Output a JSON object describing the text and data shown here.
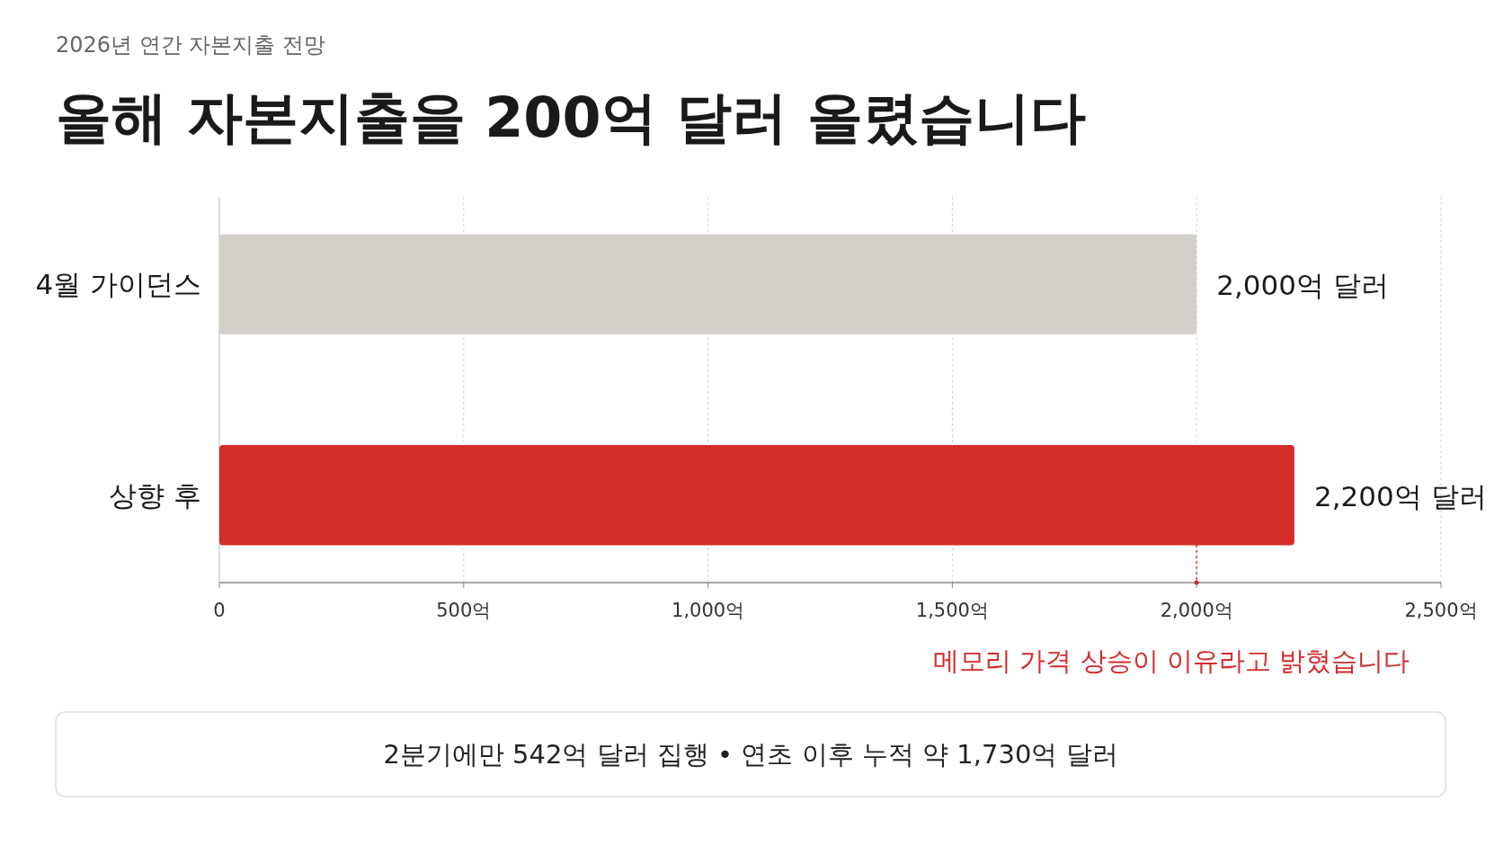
{
  "chart_data": {
    "type": "bar",
    "orientation": "horizontal",
    "subtitle": "2026년 연간 자본지출 전망",
    "title": "올해 자본지출을 200억 달러 올렸습니다",
    "categories": [
      "4월 가이던스",
      "상향 후"
    ],
    "values": [
      2000,
      2200
    ],
    "colors": [
      "#d3d0ca",
      "#d42b2b"
    ],
    "value_labels": [
      "2,000억 달러",
      "2,200억 달러"
    ],
    "xlim": [
      0,
      2500
    ],
    "xticks": [
      0,
      {
        "value": 500,
        "label": "500억"
      },
      {
        "value": 1000,
        "label": "1,000억"
      },
      {
        "value": 1500,
        "label": "1,500억"
      },
      {
        "value": 2000,
        "label": "2,000억"
      },
      {
        "value": 2500,
        "label": "2,500억"
      }
    ],
    "grid": "x",
    "ref_lines": [
      {
        "axis": "x",
        "value": 2000,
        "label": "메모리 가격 상승이 이유라고 밝혔습니다",
        "color": "#d42b2b",
        "line_style": "dotted"
      }
    ],
    "annotations": [
      "2분기에만 542억 달러 집행 • 연초 이후 누적 약 1,730억 달러"
    ]
  }
}
